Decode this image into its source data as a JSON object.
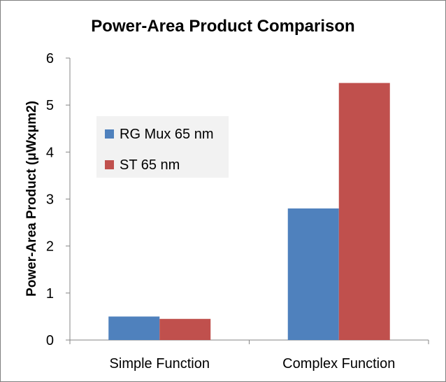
{
  "chart_data": {
    "type": "bar",
    "title": "Power-Area Product Comparison",
    "xlabel": "",
    "ylabel": "Power-Area Product  (μWxμm2)",
    "categories": [
      "Simple Function",
      "Complex Function"
    ],
    "series": [
      {
        "name": "RG Mux 65 nm",
        "values": [
          0.5,
          2.8
        ],
        "color": "#4f81bd"
      },
      {
        "name": "ST 65 nm",
        "values": [
          0.45,
          5.47
        ],
        "color": "#c0504d"
      }
    ],
    "ylim": [
      0,
      6
    ],
    "yticks": [
      0,
      1,
      2,
      3,
      4,
      5,
      6
    ],
    "grid": false,
    "legend_placement": "top-left"
  }
}
